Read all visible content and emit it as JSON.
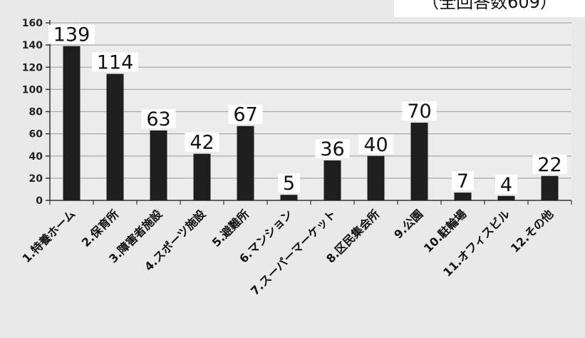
{
  "chart_data": {
    "type": "bar",
    "title": "",
    "note": "（全回答数609）",
    "xlabel": "",
    "ylabel": "",
    "ylim": [
      0,
      160
    ],
    "yticks": [
      0,
      20,
      40,
      60,
      80,
      100,
      120,
      140,
      160
    ],
    "grid": true,
    "legend": "none",
    "categories": [
      "1.特養ホーム",
      "2.保育所",
      "3.障害者施設",
      "4.スポーツ施設",
      "5.避難所",
      "6.マンション",
      "7.スーパーマーケット",
      "8.区民集会所",
      "9.公園",
      "10.駐輪場",
      "11.オフィスビル",
      "12.その他"
    ],
    "values": [
      139,
      114,
      63,
      42,
      67,
      5,
      36,
      40,
      70,
      7,
      4,
      22
    ],
    "bar_color": "#1e1e1e"
  }
}
